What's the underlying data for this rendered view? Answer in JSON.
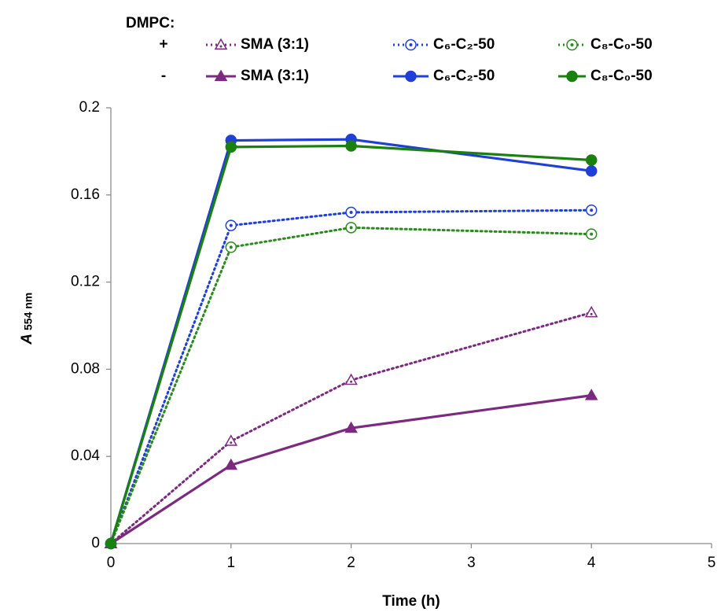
{
  "chart_data": {
    "type": "line",
    "legend_title": "DMPC:",
    "legend_rows": [
      "+",
      "-"
    ],
    "xlabel": "Time (h)",
    "ylabel": [
      "A",
      "554 nm"
    ],
    "x": [
      0,
      1,
      2,
      4
    ],
    "xlim": [
      0,
      5
    ],
    "xticks": [
      0,
      1,
      2,
      3,
      4,
      5
    ],
    "ylim": [
      0,
      0.2
    ],
    "yticks": [
      0,
      0.04,
      0.08,
      0.12,
      0.16,
      0.2
    ],
    "grid": false,
    "series": [
      {
        "name": "SMA (3:1)",
        "color": "#7b2a7f",
        "dash": "dotted",
        "marker": "open-triangle",
        "values": [
          0,
          0.047,
          0.075,
          0.106
        ]
      },
      {
        "name": "C₆-C₂-50",
        "color": "#1f3fd6",
        "dash": "dotted",
        "marker": "open-circle",
        "values": [
          0,
          0.146,
          0.152,
          0.153
        ]
      },
      {
        "name": "C₈-C₀-50",
        "color": "#2a8a1e",
        "dash": "dotted",
        "marker": "open-circle",
        "values": [
          0,
          0.136,
          0.145,
          0.142
        ]
      },
      {
        "name": "SMA (3:1)",
        "color": "#7b2a7f",
        "dash": "solid",
        "marker": "triangle",
        "values": [
          0,
          0.036,
          0.053,
          0.068
        ]
      },
      {
        "name": "C₆-C₂-50",
        "color": "#1f3fd6",
        "dash": "solid",
        "marker": "circle",
        "values": [
          0,
          0.185,
          0.1855,
          0.171
        ]
      },
      {
        "name": "C₈-C₀-50",
        "color": "#1a8010",
        "dash": "solid",
        "marker": "circle",
        "values": [
          0,
          0.182,
          0.1825,
          0.176
        ]
      }
    ]
  }
}
